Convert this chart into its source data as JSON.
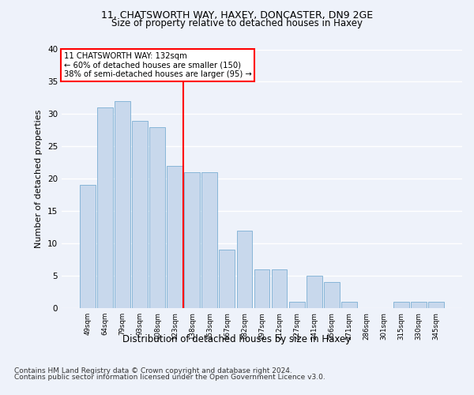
{
  "title1": "11, CHATSWORTH WAY, HAXEY, DONCASTER, DN9 2GE",
  "title2": "Size of property relative to detached houses in Haxey",
  "xlabel": "Distribution of detached houses by size in Haxey",
  "ylabel": "Number of detached properties",
  "categories": [
    "49sqm",
    "64sqm",
    "79sqm",
    "93sqm",
    "108sqm",
    "123sqm",
    "138sqm",
    "153sqm",
    "167sqm",
    "182sqm",
    "197sqm",
    "212sqm",
    "227sqm",
    "241sqm",
    "256sqm",
    "271sqm",
    "286sqm",
    "301sqm",
    "315sqm",
    "330sqm",
    "345sqm"
  ],
  "values": [
    19,
    31,
    32,
    29,
    28,
    22,
    21,
    21,
    9,
    12,
    6,
    6,
    1,
    5,
    4,
    1,
    0,
    0,
    1,
    1,
    1
  ],
  "bar_color": "#c8d8ec",
  "bar_edge_color": "#7bafd4",
  "annotation_box_text": "11 CHATSWORTH WAY: 132sqm\n← 60% of detached houses are smaller (150)\n38% of semi-detached houses are larger (95) →",
  "annotation_box_color": "white",
  "annotation_box_edge_color": "red",
  "vline_color": "red",
  "ylim": [
    0,
    40
  ],
  "yticks": [
    0,
    5,
    10,
    15,
    20,
    25,
    30,
    35,
    40
  ],
  "footer1": "Contains HM Land Registry data © Crown copyright and database right 2024.",
  "footer2": "Contains public sector information licensed under the Open Government Licence v3.0.",
  "bg_color": "#eef2fa",
  "plot_bg_color": "#eef2fa",
  "grid_color": "white",
  "vline_bin_index": 5.5
}
